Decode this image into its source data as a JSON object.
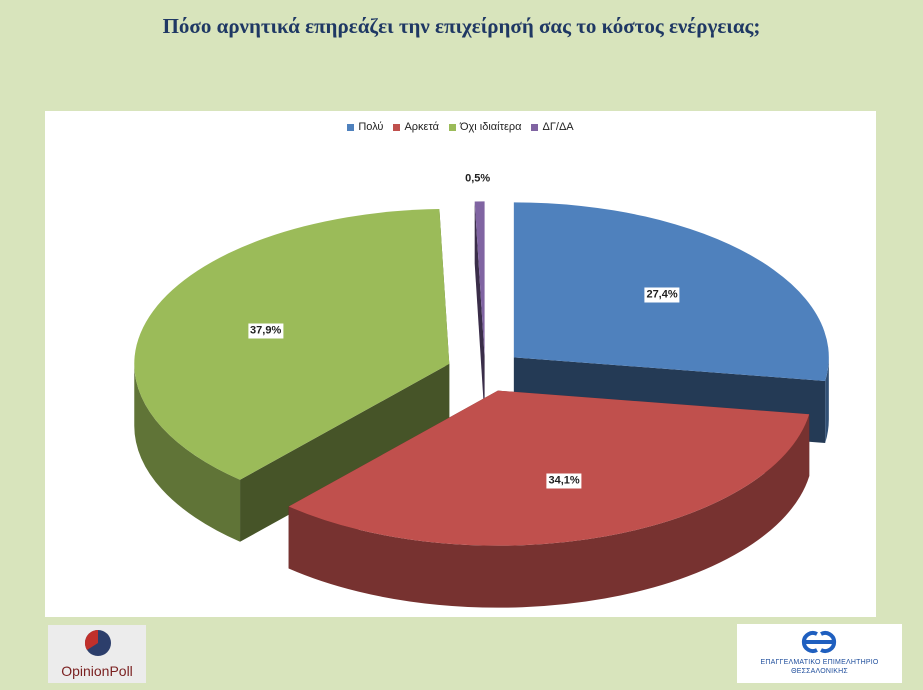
{
  "title": "Πόσο αρνητικά επηρεάζει την επιχείρησή σας το κόστος ενέργειας;",
  "chart_data": {
    "type": "pie",
    "title": "Πόσο αρνητικά επηρεάζει την επιχείρησή σας το κόστος ενέργειας;",
    "categories": [
      "Πολύ",
      "Αρκετά",
      "Όχι ιδιαίτερα",
      "ΔΓ/ΔΑ"
    ],
    "values": [
      27.4,
      34.1,
      37.9,
      0.5
    ],
    "labels": [
      "27,4%",
      "34,1%",
      "37,9%",
      "0,5%"
    ],
    "colors": [
      "#4f81bd",
      "#c0504d",
      "#9bbb59",
      "#8064a2"
    ],
    "legend": "top",
    "style": "3d-exploded"
  },
  "logos": {
    "left_text": "OpinionPoll",
    "right_text_line1": "ΕΠΑΓΓΕΛΜΑΤΙΚΟ ΕΠΙΜΕΛΗΤΗΡΙΟ",
    "right_text_line2": "ΘΕΣΣΑΛΟΝΙΚΗΣ"
  }
}
